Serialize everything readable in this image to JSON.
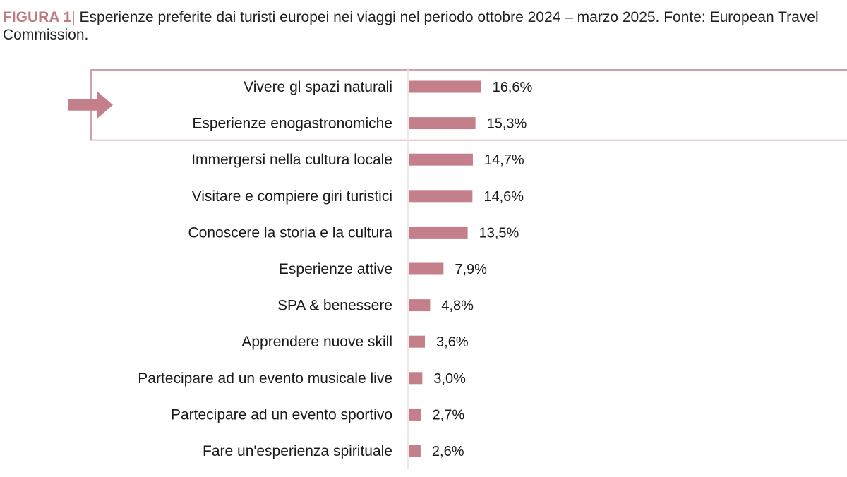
{
  "caption": {
    "figure_label": "FIGURA 1",
    "separator": "|",
    "text": "Esperienze preferite dai turisti europei nei viaggi nel periodo ottobre 2024 – marzo 2025. Fonte: European Travel Commission."
  },
  "colors": {
    "bar": "#c4808a",
    "highlight": "#c4808a",
    "arrow": "#c4808a",
    "axis": "#e6e2e2",
    "label": "#1a1a1a"
  },
  "chart_data": {
    "type": "bar",
    "orientation": "horizontal",
    "categories": [
      "Vivere gl spazi naturali",
      "Esperienze enogastronomiche",
      "Immergersi nella cultura locale",
      "Visitare e compiere giri turistici",
      "Conoscere la storia e la cultura",
      "Esperienze attive",
      "SPA & benessere",
      "Apprendere nuove skill",
      "Partecipare ad un evento musicale live",
      "Partecipare ad un evento sportivo",
      "Fare un'esperienza spirituale"
    ],
    "values": [
      16.6,
      15.3,
      14.7,
      14.6,
      13.5,
      7.9,
      4.8,
      3.6,
      3.0,
      2.7,
      2.6
    ],
    "value_labels": [
      "16,6%",
      "15,3%",
      "14,7%",
      "14,6%",
      "13,5%",
      "7,9%",
      "4,8%",
      "3,6%",
      "3,0%",
      "2,7%",
      "2,6%"
    ],
    "unit": "%",
    "xlim": [
      0,
      100
    ],
    "grid": false,
    "legend": "none",
    "highlighted_categories": [
      "Vivere gl spazi naturali",
      "Esperienze enogastronomiche"
    ],
    "title": "",
    "xlabel": "",
    "ylabel": ""
  }
}
